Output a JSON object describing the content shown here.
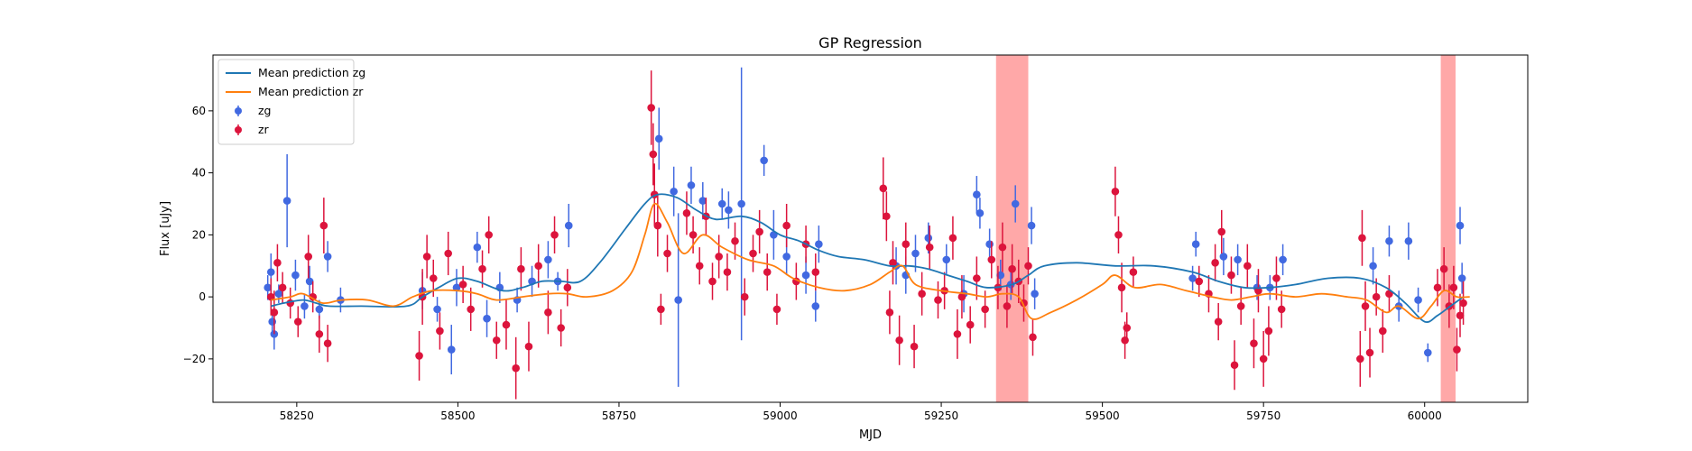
{
  "chart_data": {
    "type": "scatter",
    "title": "GP Regression",
    "xlabel": "MJD",
    "ylabel": "Flux [uJy]",
    "xlim": [
      58120,
      60160
    ],
    "ylim": [
      -34,
      78
    ],
    "xticks": [
      58250,
      58500,
      58750,
      59000,
      59250,
      59500,
      59750,
      60000
    ],
    "yticks": [
      -20,
      0,
      20,
      40,
      60
    ],
    "grid": false,
    "legend": {
      "placement": "top-left",
      "entries": [
        {
          "label": "Mean prediction zg",
          "kind": "line",
          "color": "#1f77b4"
        },
        {
          "label": "Mean prediction zr",
          "kind": "line",
          "color": "#ff7f0e"
        },
        {
          "label": "zg",
          "kind": "errorbar",
          "color": "#4169e1"
        },
        {
          "label": "zr",
          "kind": "errorbar",
          "color": "#dc143c"
        }
      ]
    },
    "shaded_regions": [
      {
        "x0": 59335,
        "x1": 59385,
        "color": "#ff9999"
      },
      {
        "x0": 60025,
        "x1": 60048,
        "color": "#ff9999"
      }
    ],
    "series": [
      {
        "name": "Mean prediction zg",
        "kind": "line",
        "color": "#1f77b4",
        "x": [
          58210,
          58230,
          58260,
          58280,
          58300,
          58350,
          58420,
          58445,
          58470,
          58500,
          58530,
          58570,
          58600,
          58630,
          58660,
          58690,
          58720,
          58760,
          58790,
          58810,
          58840,
          58870,
          58900,
          58940,
          58970,
          59000,
          59030,
          59060,
          59090,
          59130,
          59170,
          59200,
          59230,
          59260,
          59290,
          59320,
          59360,
          59385,
          59410,
          59460,
          59520,
          59580,
          59640,
          59680,
          59720,
          59760,
          59800,
          59850,
          59900,
          59940,
          59970,
          60000,
          60020,
          60040,
          60060
        ],
        "y": [
          -3,
          -2,
          -1,
          -2,
          -3,
          -3,
          -3,
          0,
          3,
          6,
          5,
          2,
          3,
          5,
          5,
          5,
          11,
          22,
          30,
          33,
          32,
          28,
          25,
          26,
          24,
          20,
          18,
          15,
          13,
          12,
          10,
          10,
          9,
          7,
          5,
          3,
          4,
          7,
          10,
          11,
          10,
          10,
          8,
          5,
          3,
          3,
          4,
          6,
          6,
          3,
          -2,
          -8,
          -6,
          -3,
          0
        ]
      },
      {
        "name": "Mean prediction zr",
        "kind": "line",
        "color": "#ff7f0e",
        "x": [
          58210,
          58240,
          58260,
          58290,
          58320,
          58360,
          58400,
          58430,
          58460,
          58500,
          58530,
          58560,
          58600,
          58640,
          58670,
          58700,
          58740,
          58770,
          58790,
          58805,
          58825,
          58850,
          58880,
          58910,
          58950,
          58990,
          59020,
          59060,
          59100,
          59140,
          59170,
          59190,
          59210,
          59250,
          59290,
          59320,
          59345,
          59370,
          59390,
          59420,
          59460,
          59500,
          59520,
          59550,
          59590,
          59630,
          59670,
          59700,
          59730,
          59760,
          59800,
          59840,
          59880,
          59910,
          59940,
          59960,
          59990,
          60010,
          60030,
          60050,
          60070
        ],
        "y": [
          -1,
          0,
          1,
          -2,
          -1,
          -1,
          -3,
          0,
          2,
          2,
          1,
          -1,
          0,
          1,
          1,
          0,
          2,
          8,
          20,
          30,
          24,
          14,
          20,
          16,
          12,
          10,
          6,
          3,
          2,
          4,
          8,
          10,
          4,
          2,
          1,
          0,
          1,
          0,
          -7,
          -5,
          -1,
          4,
          7,
          3,
          4,
          2,
          0,
          -1,
          0,
          1,
          0,
          1,
          0,
          -1,
          -5,
          -3,
          -7,
          -3,
          2,
          0,
          0
        ]
      },
      {
        "name": "zg",
        "kind": "errorbar",
        "color": "#4169e1",
        "points": [
          [
            58205,
            3,
            4
          ],
          [
            58210,
            8,
            6
          ],
          [
            58212,
            -8,
            4
          ],
          [
            58215,
            -12,
            5
          ],
          [
            58222,
            1,
            3
          ],
          [
            58235,
            31,
            15
          ],
          [
            58248,
            7,
            5
          ],
          [
            58262,
            -3,
            4
          ],
          [
            58270,
            5,
            5
          ],
          [
            58285,
            -4,
            3
          ],
          [
            58298,
            13,
            5
          ],
          [
            58318,
            -1,
            4
          ],
          [
            58445,
            2,
            6
          ],
          [
            58468,
            -4,
            4
          ],
          [
            58490,
            -17,
            8
          ],
          [
            58498,
            3,
            6
          ],
          [
            58530,
            16,
            5
          ],
          [
            58545,
            -7,
            6
          ],
          [
            58565,
            3,
            5
          ],
          [
            58592,
            -1,
            4
          ],
          [
            58615,
            5,
            5
          ],
          [
            58640,
            12,
            6
          ],
          [
            58655,
            5,
            3
          ],
          [
            58672,
            23,
            7
          ],
          [
            58812,
            51,
            10
          ],
          [
            58835,
            34,
            8
          ],
          [
            58842,
            -1,
            28
          ],
          [
            58862,
            36,
            6
          ],
          [
            58880,
            31,
            6
          ],
          [
            58910,
            30,
            5
          ],
          [
            58920,
            28,
            6
          ],
          [
            58940,
            30,
            44
          ],
          [
            58975,
            44,
            5
          ],
          [
            58990,
            20,
            8
          ],
          [
            59010,
            13,
            6
          ],
          [
            59040,
            7,
            6
          ],
          [
            59055,
            -3,
            5
          ],
          [
            59060,
            17,
            6
          ],
          [
            59180,
            10,
            6
          ],
          [
            59195,
            7,
            6
          ],
          [
            59210,
            14,
            6
          ],
          [
            59230,
            19,
            5
          ],
          [
            59258,
            12,
            5
          ],
          [
            59285,
            1,
            6
          ],
          [
            59305,
            33,
            6
          ],
          [
            59310,
            27,
            5
          ],
          [
            59325,
            17,
            5
          ],
          [
            59342,
            7,
            5
          ],
          [
            59358,
            4,
            5
          ],
          [
            59365,
            30,
            6
          ],
          [
            59390,
            23,
            6
          ],
          [
            59395,
            1,
            5
          ],
          [
            59640,
            6,
            4
          ],
          [
            59645,
            17,
            4
          ],
          [
            59688,
            13,
            6
          ],
          [
            59710,
            12,
            5
          ],
          [
            59740,
            3,
            4
          ],
          [
            59760,
            3,
            4
          ],
          [
            59780,
            12,
            5
          ],
          [
            59920,
            10,
            6
          ],
          [
            59945,
            18,
            5
          ],
          [
            59960,
            -3,
            5
          ],
          [
            59975,
            18,
            6
          ],
          [
            59990,
            -1,
            4
          ],
          [
            60005,
            -18,
            3
          ],
          [
            60055,
            23,
            6
          ],
          [
            60058,
            6,
            5
          ]
        ]
      },
      {
        "name": "zr",
        "kind": "errorbar",
        "color": "#dc143c",
        "points": [
          [
            58210,
            0,
            6
          ],
          [
            58215,
            -5,
            7
          ],
          [
            58220,
            11,
            6
          ],
          [
            58228,
            3,
            5
          ],
          [
            58240,
            -2,
            5
          ],
          [
            58252,
            -8,
            5
          ],
          [
            58268,
            13,
            7
          ],
          [
            58275,
            0,
            5
          ],
          [
            58285,
            -12,
            6
          ],
          [
            58292,
            23,
            9
          ],
          [
            58298,
            -15,
            6
          ],
          [
            58440,
            -19,
            8
          ],
          [
            58445,
            0,
            9
          ],
          [
            58452,
            13,
            7
          ],
          [
            58462,
            6,
            6
          ],
          [
            58472,
            -11,
            6
          ],
          [
            58485,
            14,
            7
          ],
          [
            58508,
            4,
            6
          ],
          [
            58520,
            -4,
            7
          ],
          [
            58538,
            9,
            6
          ],
          [
            58548,
            20,
            6
          ],
          [
            58560,
            -14,
            6
          ],
          [
            58575,
            -9,
            8
          ],
          [
            58590,
            -23,
            10
          ],
          [
            58598,
            9,
            7
          ],
          [
            58610,
            -16,
            8
          ],
          [
            58625,
            10,
            7
          ],
          [
            58640,
            -5,
            7
          ],
          [
            58650,
            20,
            6
          ],
          [
            58660,
            -10,
            6
          ],
          [
            58670,
            3,
            6
          ],
          [
            58800,
            61,
            12
          ],
          [
            58803,
            46,
            10
          ],
          [
            58805,
            33,
            10
          ],
          [
            58810,
            23,
            10
          ],
          [
            58815,
            -4,
            5
          ],
          [
            58825,
            14,
            6
          ],
          [
            58855,
            27,
            7
          ],
          [
            58865,
            20,
            6
          ],
          [
            58875,
            10,
            6
          ],
          [
            58885,
            26,
            6
          ],
          [
            58895,
            5,
            6
          ],
          [
            58905,
            13,
            7
          ],
          [
            58918,
            8,
            6
          ],
          [
            58930,
            18,
            6
          ],
          [
            58945,
            0,
            6
          ],
          [
            58958,
            14,
            6
          ],
          [
            58968,
            21,
            7
          ],
          [
            58980,
            8,
            6
          ],
          [
            58995,
            -4,
            5
          ],
          [
            59010,
            23,
            7
          ],
          [
            59025,
            5,
            6
          ],
          [
            59040,
            17,
            6
          ],
          [
            59055,
            8,
            6
          ],
          [
            59160,
            35,
            10
          ],
          [
            59165,
            26,
            8
          ],
          [
            59170,
            -5,
            7
          ],
          [
            59175,
            11,
            7
          ],
          [
            59185,
            -14,
            8
          ],
          [
            59195,
            17,
            7
          ],
          [
            59208,
            -16,
            7
          ],
          [
            59220,
            1,
            7
          ],
          [
            59232,
            16,
            7
          ],
          [
            59245,
            -1,
            6
          ],
          [
            59255,
            2,
            6
          ],
          [
            59268,
            19,
            7
          ],
          [
            59275,
            -12,
            8
          ],
          [
            59282,
            0,
            7
          ],
          [
            59295,
            -9,
            6
          ],
          [
            59305,
            6,
            7
          ],
          [
            59318,
            -4,
            6
          ],
          [
            59328,
            12,
            6
          ],
          [
            59338,
            3,
            7
          ],
          [
            59345,
            16,
            8
          ],
          [
            59352,
            -3,
            7
          ],
          [
            59360,
            9,
            8
          ],
          [
            59370,
            5,
            7
          ],
          [
            59378,
            -2,
            6
          ],
          [
            59385,
            10,
            6
          ],
          [
            59392,
            -13,
            6
          ],
          [
            59520,
            34,
            8
          ],
          [
            59525,
            20,
            6
          ],
          [
            59530,
            3,
            8
          ],
          [
            59535,
            -14,
            6
          ],
          [
            59538,
            -10,
            5
          ],
          [
            59548,
            8,
            5
          ],
          [
            59650,
            5,
            5
          ],
          [
            59665,
            1,
            6
          ],
          [
            59675,
            11,
            6
          ],
          [
            59680,
            -8,
            6
          ],
          [
            59685,
            21,
            7
          ],
          [
            59700,
            7,
            6
          ],
          [
            59705,
            -22,
            8
          ],
          [
            59715,
            -3,
            6
          ],
          [
            59725,
            10,
            7
          ],
          [
            59735,
            -15,
            8
          ],
          [
            59742,
            2,
            7
          ],
          [
            59750,
            -20,
            9
          ],
          [
            59758,
            -11,
            8
          ],
          [
            59770,
            6,
            7
          ],
          [
            59778,
            -4,
            6
          ],
          [
            59900,
            -20,
            9
          ],
          [
            59903,
            19,
            9
          ],
          [
            59908,
            -3,
            8
          ],
          [
            59915,
            -18,
            8
          ],
          [
            59925,
            0,
            6
          ],
          [
            59935,
            -11,
            7
          ],
          [
            59945,
            1,
            6
          ],
          [
            60020,
            3,
            6
          ],
          [
            60030,
            9,
            7
          ],
          [
            60038,
            -3,
            7
          ],
          [
            60045,
            3,
            7
          ],
          [
            60050,
            -17,
            7
          ],
          [
            60055,
            -6,
            7
          ],
          [
            60060,
            -2,
            7
          ]
        ]
      }
    ]
  }
}
